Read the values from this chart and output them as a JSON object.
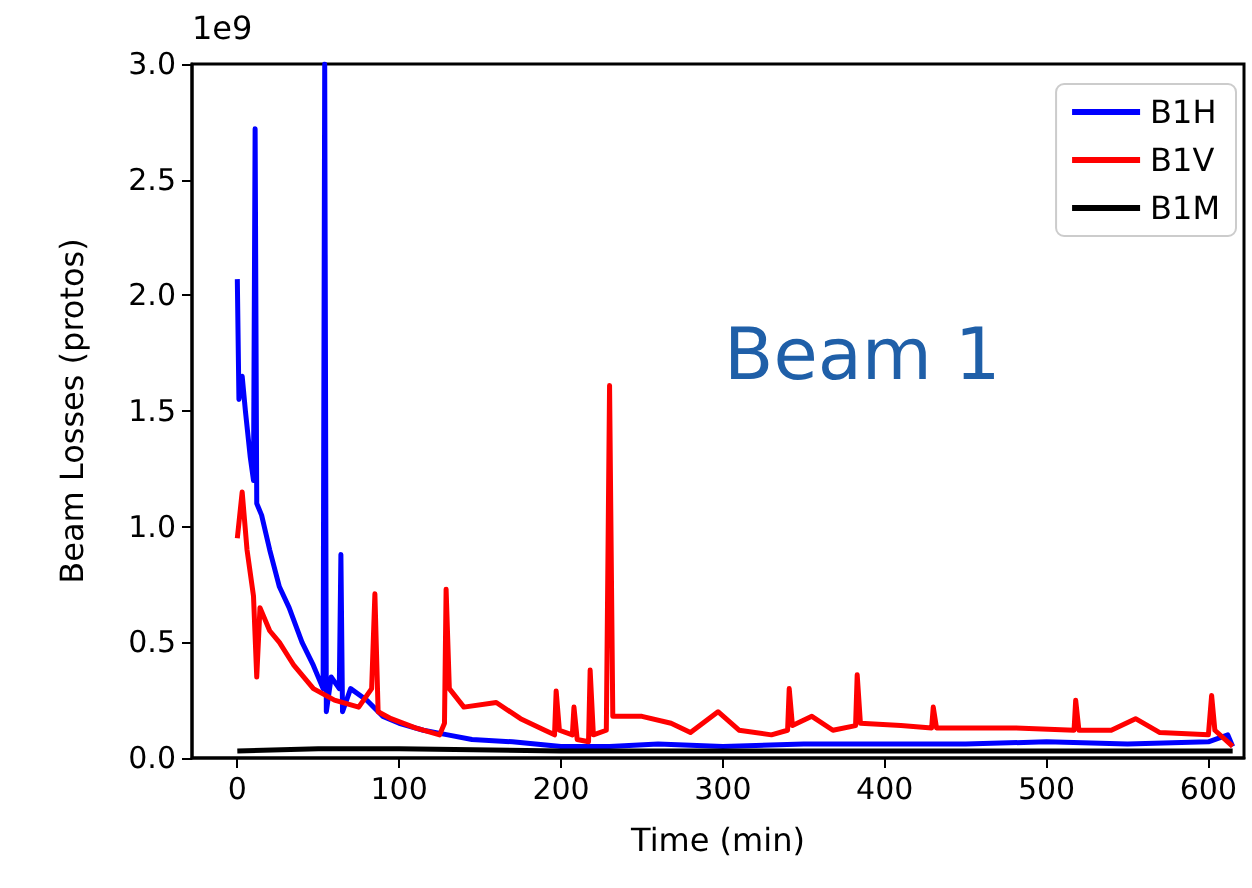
{
  "chart_data": {
    "type": "line",
    "xlabel": "Time (min)",
    "ylabel": "Beam Losses (protos)",
    "annotations": [
      "1e9",
      "Beam 1"
    ],
    "xlim": [
      -28,
      622
    ],
    "xticks": [
      0,
      100,
      200,
      300,
      400,
      500,
      600
    ],
    "ylim": [
      0,
      3
    ],
    "yticks": [
      {
        "value": 0,
        "label": "0.0"
      },
      0.5,
      {
        "value": 1,
        "label": "1.0"
      },
      1.5,
      {
        "value": 2,
        "label": "2.0"
      },
      2.5,
      {
        "value": 3,
        "label": "3.0"
      }
    ],
    "grid": false,
    "legend": "top right",
    "marker": "none",
    "line_style": "solid",
    "series": [
      {
        "name": "B1H",
        "color": "#0000ff",
        "x": [
          0,
          1,
          3,
          5,
          8,
          10,
          11,
          12,
          15,
          20,
          26,
          32,
          40,
          47,
          53,
          54,
          55,
          58,
          63,
          64,
          65,
          70,
          80,
          90,
          100,
          115,
          130,
          145,
          170,
          200,
          230,
          260,
          300,
          350,
          400,
          450,
          500,
          550,
          600,
          612,
          615
        ],
        "values": [
          2.07,
          1.55,
          1.65,
          1.5,
          1.3,
          1.2,
          2.72,
          1.1,
          1.05,
          0.9,
          0.74,
          0.65,
          0.5,
          0.4,
          0.3,
          3.0,
          0.2,
          0.35,
          0.3,
          0.88,
          0.2,
          0.3,
          0.25,
          0.18,
          0.15,
          0.12,
          0.1,
          0.08,
          0.07,
          0.05,
          0.05,
          0.06,
          0.05,
          0.06,
          0.06,
          0.06,
          0.07,
          0.06,
          0.07,
          0.1,
          0.05
        ]
      },
      {
        "name": "B1V",
        "color": "#ff0000",
        "x": [
          0,
          3,
          6,
          10,
          12,
          14,
          20,
          26,
          35,
          47,
          60,
          75,
          83,
          85,
          87,
          95,
          110,
          125,
          128,
          129,
          131,
          140,
          160,
          175,
          190,
          196,
          197,
          199,
          207,
          208,
          210,
          217,
          218,
          220,
          228,
          230,
          232,
          250,
          268,
          280,
          297,
          310,
          330,
          340,
          341,
          343,
          355,
          368,
          382,
          383,
          385,
          410,
          429,
          430,
          432,
          480,
          517,
          518,
          520,
          540,
          555,
          570,
          600,
          602,
          604,
          615
        ],
        "values": [
          0.95,
          1.15,
          0.9,
          0.7,
          0.35,
          0.65,
          0.55,
          0.5,
          0.4,
          0.3,
          0.25,
          0.22,
          0.3,
          0.71,
          0.2,
          0.17,
          0.13,
          0.1,
          0.15,
          0.73,
          0.3,
          0.22,
          0.24,
          0.17,
          0.12,
          0.1,
          0.29,
          0.12,
          0.1,
          0.22,
          0.08,
          0.07,
          0.38,
          0.1,
          0.12,
          1.61,
          0.18,
          0.18,
          0.15,
          0.11,
          0.2,
          0.12,
          0.1,
          0.12,
          0.3,
          0.14,
          0.18,
          0.12,
          0.14,
          0.36,
          0.15,
          0.14,
          0.13,
          0.22,
          0.13,
          0.13,
          0.12,
          0.25,
          0.12,
          0.12,
          0.17,
          0.11,
          0.1,
          0.27,
          0.12,
          0.05
        ]
      },
      {
        "name": "B1M",
        "color": "#000000",
        "x": [
          0,
          50,
          100,
          200,
          300,
          400,
          500,
          615
        ],
        "values": [
          0.03,
          0.04,
          0.04,
          0.03,
          0.03,
          0.03,
          0.03,
          0.03
        ]
      }
    ]
  }
}
